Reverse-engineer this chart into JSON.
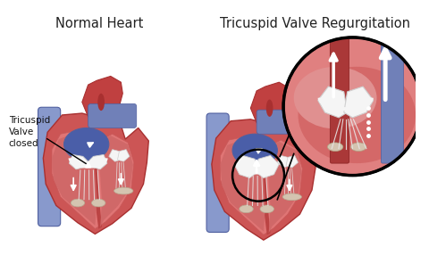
{
  "background_color": "#ffffff",
  "title_left": "Normal Heart",
  "title_right": "Tricuspid Valve Regurgitation",
  "label_text": "Tricuspid\nValve\nclosed",
  "title_fontsize": 10.5,
  "label_fontsize": 7.5,
  "colors": {
    "heart_outer": "#cc5555",
    "heart_mid": "#d96060",
    "heart_inner": "#e07575",
    "heart_cavity": "#c85a5a",
    "cavity_inner": "#d06868",
    "vessel_blue_light": "#8899cc",
    "vessel_blue_mid": "#7080b8",
    "vessel_blue_dark": "#5060a0",
    "atrium_blue": "#4a5ea8",
    "atrium_blue_light": "#6070c0",
    "aorta_red": "#c04040",
    "aorta_dark": "#a83030",
    "wall_dark": "#bb4444",
    "septum": "#b03030",
    "valve_white": "#f5f5f5",
    "valve_edge": "#d0d0d0",
    "chordae": "#e8e8e8",
    "papillary": "#d4c4b0",
    "arrow_white": "#ffffff",
    "black": "#000000",
    "mag_bg": "#e08080",
    "mag_inner": "#c86060",
    "mag_wall": "#c05050"
  },
  "fig_width": 4.81,
  "fig_height": 3.14,
  "dpi": 100
}
